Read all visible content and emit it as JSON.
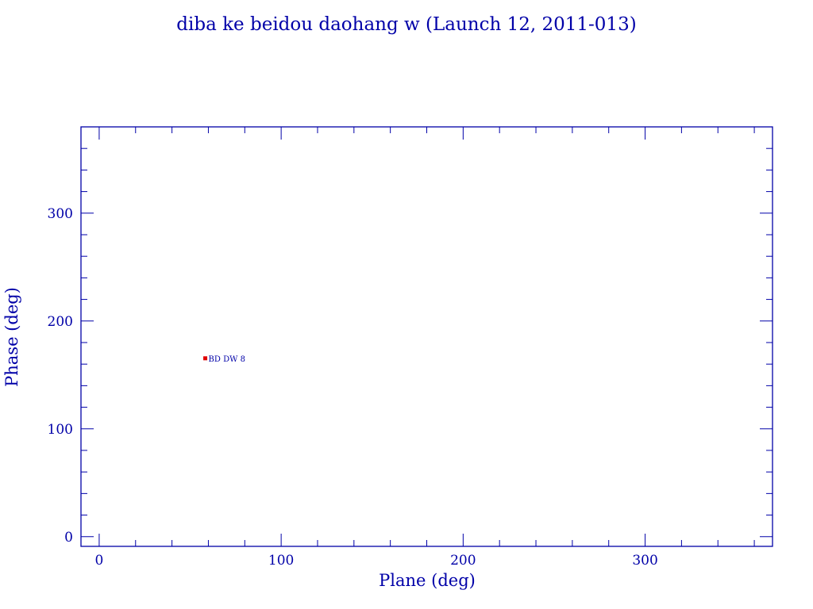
{
  "chart_data": {
    "type": "scatter",
    "title": "diba ke beidou daohang w (Launch 12, 2011-013)",
    "xlabel": "Plane (deg)",
    "ylabel": "Phase (deg)",
    "xlim": [
      -10,
      370
    ],
    "ylim": [
      -9,
      380
    ],
    "xticks": [
      0,
      100,
      200,
      300
    ],
    "yticks": [
      0,
      100,
      200,
      300
    ],
    "minor_tick_step": 20,
    "grid": false,
    "points": [
      {
        "x": 58.3,
        "y": 165.4,
        "label": "BD DW 8"
      }
    ],
    "colors": {
      "axes": "#0000a8",
      "point": "#e00000"
    }
  }
}
